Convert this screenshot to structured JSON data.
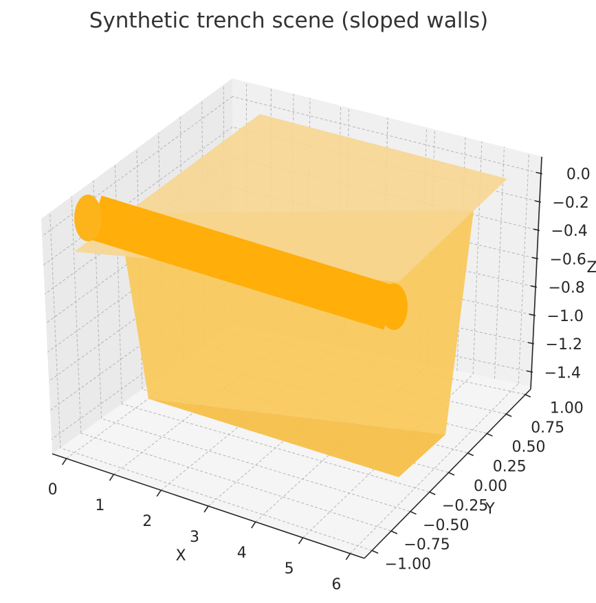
{
  "chart_data": {
    "type": "surface3d",
    "title": "Synthetic trench scene (sloped walls)",
    "xlabel": "X",
    "ylabel": "Y",
    "zlabel": "Z",
    "xlim": [
      -0.3,
      6.3
    ],
    "ylim": [
      -1.1,
      1.1
    ],
    "zlim": [
      -1.5,
      0.12
    ],
    "xticks": [
      0,
      1,
      2,
      3,
      4,
      5,
      6
    ],
    "yticks": [
      1.0,
      0.75,
      0.5,
      0.25,
      0.0,
      -0.25,
      -0.5,
      -0.75,
      -1.0
    ],
    "zticks": [
      0.0,
      -0.2,
      -0.4,
      -0.6,
      -0.8,
      -1.0,
      -1.2,
      -1.4
    ],
    "xtick_labels": [
      "0",
      "1",
      "2",
      "3",
      "4",
      "5",
      "6"
    ],
    "ytick_labels": [
      "1.00",
      "0.75",
      "0.50",
      "0.25",
      "0.00",
      "−0.25",
      "−0.50",
      "−0.75",
      "−1.00"
    ],
    "ztick_labels": [
      "0.0",
      "−0.2",
      "−0.4",
      "−0.6",
      "−0.8",
      "−1.0",
      "−1.2",
      "−1.4"
    ],
    "grid": true,
    "surfaces": [
      {
        "shape": "ground plane",
        "z": 0.0,
        "color": "#f6d691"
      },
      {
        "shape": "trench walls and floor",
        "floor_z": -1.5,
        "color": "#f9c85a"
      },
      {
        "shape": "cylinder pipe",
        "color": "#ffae0a"
      }
    ],
    "colors": {
      "accent": "#ffae0a",
      "trench": "#f9c85a",
      "ground": "#f6d691",
      "pane": "#f2f2f2"
    }
  }
}
